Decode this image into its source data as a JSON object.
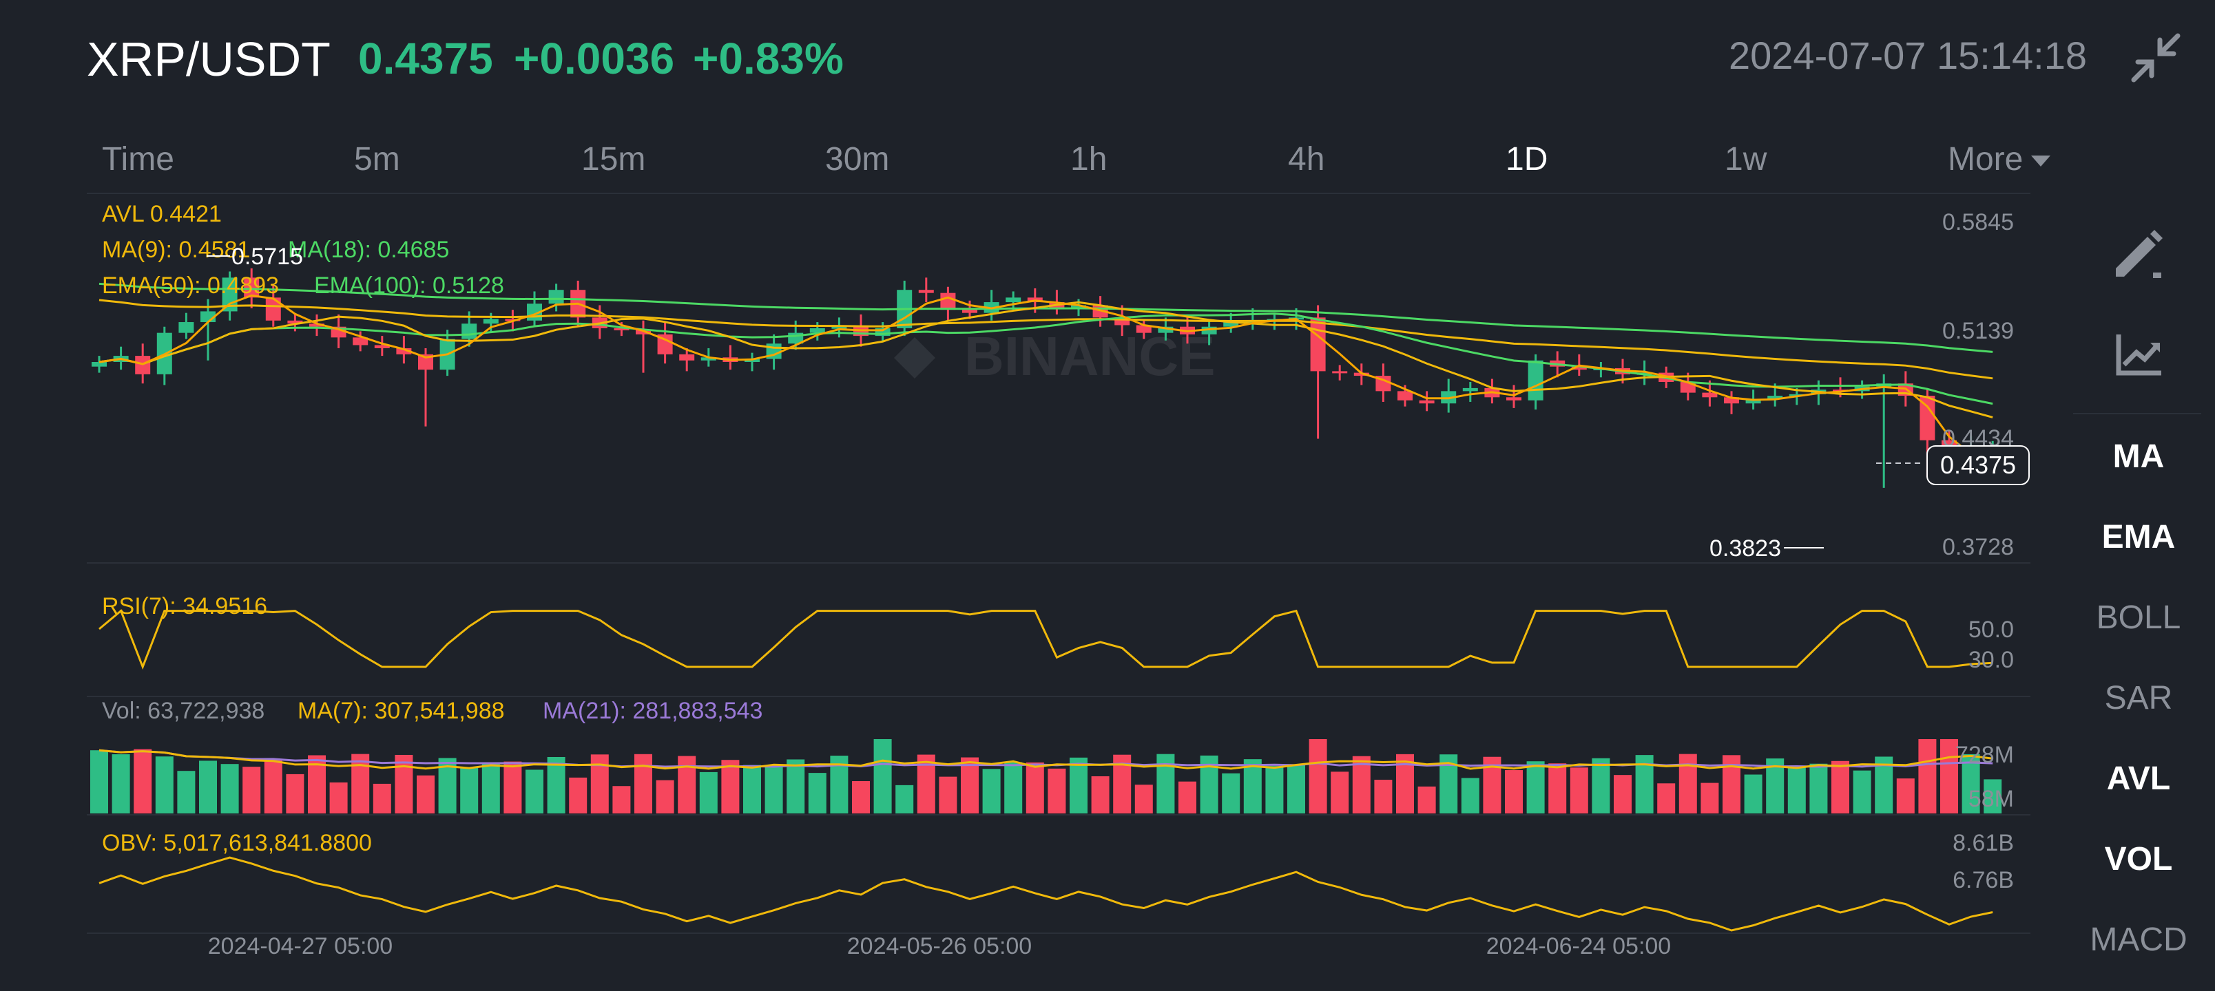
{
  "header": {
    "pair": "XRP/USDT",
    "price": "0.4375",
    "change": "+0.0036",
    "change_pct": "+0.83%",
    "timestamp": "2024-07-07 15:14:18",
    "collapse_icon": "collapse-icon"
  },
  "tabs": [
    {
      "label": "Time",
      "active": false
    },
    {
      "label": "5m",
      "active": false
    },
    {
      "label": "15m",
      "active": false
    },
    {
      "label": "30m",
      "active": false
    },
    {
      "label": "1h",
      "active": false
    },
    {
      "label": "4h",
      "active": false
    },
    {
      "label": "1D",
      "active": true
    },
    {
      "label": "1w",
      "active": false
    },
    {
      "label": "More",
      "active": false
    }
  ],
  "main_chart": {
    "legend": {
      "avl": "AVL 0.4421",
      "ma9": "MA(9): 0.4581",
      "ma18": "MA(18): 0.4685",
      "ema50": "EMA(50): 0.4893",
      "ema100": "EMA(100): 0.5128"
    },
    "price_axis": [
      "0.5845",
      "0.5139",
      "0.4434",
      "0.3728"
    ],
    "current_price_tag": "0.4375",
    "high_label": "0.5715",
    "low_label": "0.3823",
    "watermark": "BINANCE"
  },
  "rsi": {
    "label": "RSI(7): 34.9516",
    "axis": [
      "50.0",
      "30.0"
    ]
  },
  "volume": {
    "vol_label": "Vol: 63,722,938",
    "ma7_label": "MA(7): 307,541,988",
    "ma21_label": "MA(21): 281,883,543",
    "axis": [
      "728M",
      "58M"
    ]
  },
  "obv": {
    "label": "OBV: 5,017,613,841.8800",
    "axis": [
      "8.61B",
      "6.76B"
    ]
  },
  "date_axis": [
    "2024-04-27 05:00",
    "2024-05-26 05:00",
    "2024-06-24 05:00"
  ],
  "tools": {
    "draw_icon": "pencil-icon",
    "indicator_icon": "chart-line-icon",
    "items": [
      {
        "label": "MA",
        "active": true
      },
      {
        "label": "EMA",
        "active": true
      },
      {
        "label": "BOLL",
        "active": false
      },
      {
        "label": "SAR",
        "active": false
      },
      {
        "label": "AVL",
        "active": true
      },
      {
        "label": "VOL",
        "active": true
      },
      {
        "label": "MACD",
        "active": false
      }
    ]
  },
  "colors": {
    "up": "#2ebd85",
    "down": "#f6465d",
    "ma_yellow": "#f0b90b",
    "ema_green": "#4cd964",
    "ma21_purple": "#9b7ad8",
    "background": "#1e2229"
  }
}
